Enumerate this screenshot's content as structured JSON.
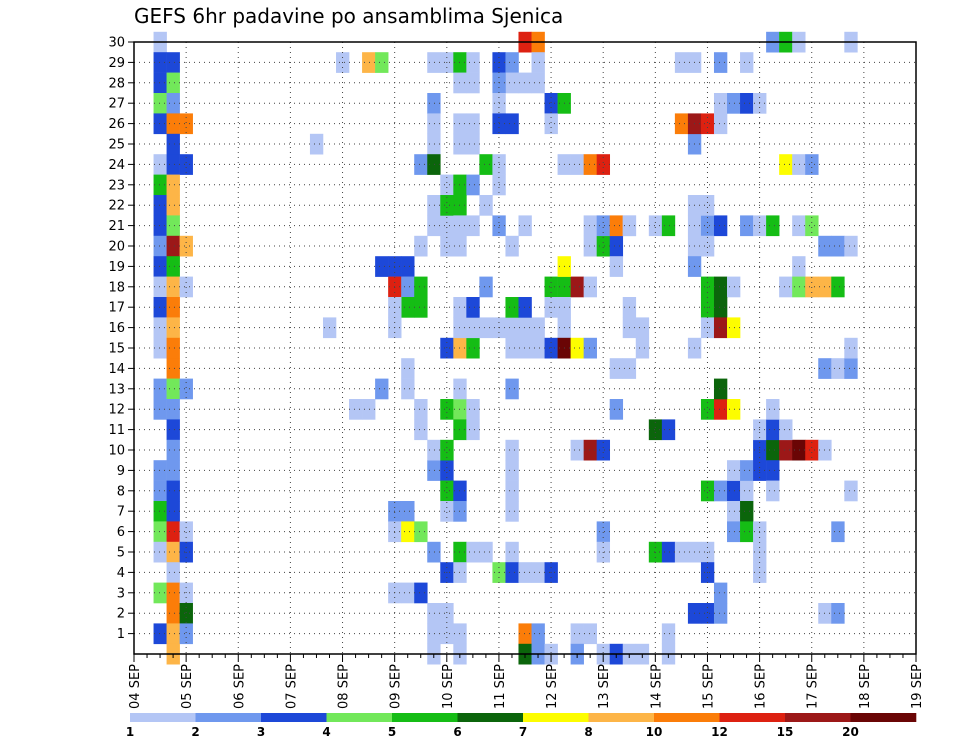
{
  "chart_data": {
    "type": "heatmap",
    "title": "GEFS 6hr padavine po ansamblima Sjenica",
    "xlabel": "",
    "ylabel": "",
    "x_tick_labels": [
      "04 SEP",
      "05 SEP",
      "06 SEP",
      "07 SEP",
      "08 SEP",
      "09 SEP",
      "10 SEP",
      "11 SEP",
      "12 SEP",
      "13 SEP",
      "14 SEP",
      "15 SEP",
      "16 SEP",
      "17 SEP",
      "18 SEP",
      "19 SEP"
    ],
    "y_tick_labels": [
      "1",
      "2",
      "3",
      "4",
      "5",
      "6",
      "7",
      "8",
      "9",
      "10",
      "11",
      "12",
      "13",
      "14",
      "15",
      "16",
      "17",
      "18",
      "19",
      "20",
      "21",
      "22",
      "23",
      "24",
      "25",
      "26",
      "27",
      "28",
      "29",
      "30"
    ],
    "x_unit": "6-hour steps from 04 SEP 00 UTC",
    "x_range_steps": [
      0,
      60
    ],
    "y_range_members": [
      0,
      30
    ],
    "grid": "dotted",
    "color_levels": [
      1,
      2,
      3,
      4,
      5,
      6,
      7,
      8,
      10,
      12,
      15,
      20
    ],
    "level_labels": [
      "1",
      "2",
      "3",
      "4",
      "5",
      "6",
      "7",
      "8",
      "10",
      "12",
      "15",
      "20"
    ],
    "colors": [
      "#b4c6f5",
      "#6f98ee",
      "#1d48d8",
      "#72e85a",
      "#15bd15",
      "#0b650b",
      "#fdfd00",
      "#fdb547",
      "#fb7d09",
      "#dd2111",
      "#9c1818",
      "#6a0505"
    ],
    "cells_format": "[time_step, member, color_class_index(0..11)]",
    "cells": [
      [
        2,
        30,
        0
      ],
      [
        2,
        29,
        2
      ],
      [
        3,
        29,
        2
      ],
      [
        2,
        28,
        2
      ],
      [
        3,
        28,
        3
      ],
      [
        2,
        27,
        3
      ],
      [
        3,
        27,
        1
      ],
      [
        2,
        26,
        2
      ],
      [
        3,
        26,
        8
      ],
      [
        4,
        26,
        8
      ],
      [
        3,
        25,
        2
      ],
      [
        2,
        24,
        0
      ],
      [
        3,
        24,
        2
      ],
      [
        4,
        24,
        2
      ],
      [
        2,
        23,
        4
      ],
      [
        3,
        23,
        7
      ],
      [
        2,
        22,
        2
      ],
      [
        3,
        22,
        7
      ],
      [
        2,
        21,
        2
      ],
      [
        3,
        21,
        3
      ],
      [
        2,
        20,
        1
      ],
      [
        3,
        20,
        10
      ],
      [
        4,
        20,
        7
      ],
      [
        2,
        19,
        2
      ],
      [
        3,
        19,
        4
      ],
      [
        2,
        18,
        0
      ],
      [
        3,
        18,
        7
      ],
      [
        4,
        18,
        0
      ],
      [
        2,
        17,
        2
      ],
      [
        3,
        17,
        8
      ],
      [
        2,
        16,
        0
      ],
      [
        3,
        16,
        7
      ],
      [
        2,
        15,
        0
      ],
      [
        3,
        15,
        8
      ],
      [
        3,
        14,
        8
      ],
      [
        2,
        13,
        1
      ],
      [
        3,
        13,
        3
      ],
      [
        4,
        13,
        1
      ],
      [
        2,
        12,
        1
      ],
      [
        3,
        12,
        1
      ],
      [
        3,
        11,
        2
      ],
      [
        3,
        10,
        1
      ],
      [
        2,
        9,
        1
      ],
      [
        3,
        9,
        1
      ],
      [
        2,
        8,
        1
      ],
      [
        3,
        8,
        2
      ],
      [
        2,
        7,
        4
      ],
      [
        3,
        7,
        2
      ],
      [
        2,
        6,
        3
      ],
      [
        3,
        6,
        9
      ],
      [
        4,
        6,
        0
      ],
      [
        2,
        5,
        0
      ],
      [
        3,
        5,
        7
      ],
      [
        4,
        5,
        2
      ],
      [
        3,
        4,
        0
      ],
      [
        2,
        3,
        3
      ],
      [
        3,
        3,
        8
      ],
      [
        4,
        3,
        0
      ],
      [
        3,
        2,
        8
      ],
      [
        4,
        2,
        5
      ],
      [
        2,
        1,
        2
      ],
      [
        3,
        1,
        7
      ],
      [
        4,
        1,
        1
      ],
      [
        3,
        0,
        7
      ],
      [
        14,
        25,
        0
      ],
      [
        15,
        16,
        0
      ],
      [
        16,
        29,
        0
      ],
      [
        18,
        29,
        7
      ],
      [
        19,
        29,
        3
      ],
      [
        17,
        12,
        0
      ],
      [
        18,
        12,
        0
      ],
      [
        19,
        13,
        1
      ],
      [
        20,
        3,
        0
      ],
      [
        21,
        3,
        0
      ],
      [
        22,
        3,
        2
      ],
      [
        20,
        7,
        1
      ],
      [
        21,
        7,
        1
      ],
      [
        20,
        6,
        0
      ],
      [
        21,
        6,
        6
      ],
      [
        22,
        6,
        3
      ],
      [
        19,
        19,
        2
      ],
      [
        20,
        19,
        2
      ],
      [
        21,
        19,
        2
      ],
      [
        20,
        18,
        9
      ],
      [
        21,
        18,
        1
      ],
      [
        22,
        18,
        4
      ],
      [
        21,
        17,
        4
      ],
      [
        22,
        17,
        4
      ],
      [
        20,
        17,
        0
      ],
      [
        20,
        16,
        0
      ],
      [
        21,
        13,
        0
      ],
      [
        22,
        12,
        0
      ],
      [
        21,
        14,
        0
      ],
      [
        22,
        11,
        0
      ],
      [
        23,
        29,
        0
      ],
      [
        24,
        29,
        0
      ],
      [
        23,
        27,
        1
      ],
      [
        23,
        26,
        0
      ],
      [
        23,
        25,
        0
      ],
      [
        22,
        24,
        1
      ],
      [
        23,
        24,
        5
      ],
      [
        22,
        20,
        0
      ],
      [
        23,
        22,
        0
      ],
      [
        23,
        21,
        0
      ],
      [
        24,
        21,
        0
      ],
      [
        24,
        20,
        0
      ],
      [
        23,
        9,
        1
      ],
      [
        24,
        9,
        2
      ],
      [
        23,
        10,
        0
      ],
      [
        24,
        10,
        4
      ],
      [
        24,
        8,
        4
      ],
      [
        25,
        8,
        2
      ],
      [
        24,
        7,
        0
      ],
      [
        25,
        7,
        1
      ],
      [
        23,
        5,
        1
      ],
      [
        25,
        5,
        4
      ],
      [
        26,
        5,
        0
      ],
      [
        27,
        5,
        0
      ],
      [
        24,
        4,
        2
      ],
      [
        25,
        4,
        0
      ],
      [
        23,
        2,
        0
      ],
      [
        24,
        2,
        0
      ],
      [
        23,
        1,
        0
      ],
      [
        24,
        1,
        0
      ],
      [
        25,
        1,
        0
      ],
      [
        23,
        0,
        0
      ],
      [
        25,
        0,
        0
      ],
      [
        24,
        12,
        4
      ],
      [
        25,
        12,
        3
      ],
      [
        26,
        12,
        0
      ],
      [
        25,
        11,
        4
      ],
      [
        26,
        11,
        0
      ],
      [
        25,
        13,
        0
      ],
      [
        24,
        15,
        2
      ],
      [
        25,
        15,
        7
      ],
      [
        26,
        15,
        4
      ],
      [
        25,
        16,
        0
      ],
      [
        25,
        17,
        0
      ],
      [
        26,
        16,
        0
      ],
      [
        25,
        29,
        4
      ],
      [
        26,
        29,
        0
      ],
      [
        25,
        28,
        0
      ],
      [
        26,
        28,
        0
      ],
      [
        25,
        26,
        0
      ],
      [
        26,
        26,
        0
      ],
      [
        25,
        25,
        0
      ],
      [
        26,
        25,
        0
      ],
      [
        24,
        23,
        0
      ],
      [
        25,
        23,
        4
      ],
      [
        26,
        23,
        1
      ],
      [
        24,
        22,
        4
      ],
      [
        25,
        22,
        4
      ],
      [
        25,
        21,
        0
      ],
      [
        25,
        20,
        0
      ],
      [
        27,
        18,
        1
      ],
      [
        26,
        17,
        2
      ],
      [
        26,
        21,
        0
      ],
      [
        28,
        29,
        2
      ],
      [
        29,
        29,
        1
      ],
      [
        29,
        28,
        0
      ],
      [
        28,
        28,
        1
      ],
      [
        28,
        27,
        0
      ],
      [
        28,
        26,
        2
      ],
      [
        29,
        26,
        2
      ],
      [
        28,
        23,
        0
      ],
      [
        27,
        24,
        4
      ],
      [
        28,
        24,
        0
      ],
      [
        27,
        22,
        0
      ],
      [
        28,
        21,
        1
      ],
      [
        27,
        16,
        0
      ],
      [
        28,
        16,
        0
      ],
      [
        29,
        16,
        0
      ],
      [
        30,
        16,
        0
      ],
      [
        31,
        16,
        0
      ],
      [
        29,
        17,
        4
      ],
      [
        30,
        17,
        2
      ],
      [
        30,
        21,
        0
      ],
      [
        29,
        20,
        0
      ],
      [
        29,
        15,
        0
      ],
      [
        30,
        15,
        0
      ],
      [
        31,
        15,
        0
      ],
      [
        29,
        13,
        1
      ],
      [
        29,
        10,
        0
      ],
      [
        29,
        9,
        0
      ],
      [
        29,
        8,
        0
      ],
      [
        29,
        7,
        0
      ],
      [
        29,
        5,
        0
      ],
      [
        28,
        4,
        3
      ],
      [
        29,
        4,
        2
      ],
      [
        30,
        4,
        0
      ],
      [
        31,
        4,
        0
      ],
      [
        32,
        4,
        2
      ],
      [
        30,
        1,
        8
      ],
      [
        31,
        1,
        1
      ],
      [
        30,
        0,
        5
      ],
      [
        31,
        0,
        1
      ],
      [
        32,
        0,
        0
      ],
      [
        30,
        30,
        9
      ],
      [
        31,
        30,
        8
      ],
      [
        31,
        29,
        0
      ],
      [
        30,
        28,
        0
      ],
      [
        31,
        28,
        0
      ],
      [
        32,
        27,
        2
      ],
      [
        33,
        27,
        4
      ],
      [
        32,
        26,
        0
      ],
      [
        33,
        24,
        0
      ],
      [
        34,
        24,
        0
      ],
      [
        35,
        24,
        8
      ],
      [
        36,
        24,
        9
      ],
      [
        32,
        18,
        4
      ],
      [
        33,
        18,
        4
      ],
      [
        34,
        18,
        10
      ],
      [
        35,
        18,
        0
      ],
      [
        33,
        19,
        6
      ],
      [
        33,
        17,
        0
      ],
      [
        32,
        17,
        0
      ],
      [
        33,
        16,
        0
      ],
      [
        32,
        15,
        2
      ],
      [
        33,
        15,
        11
      ],
      [
        34,
        15,
        6
      ],
      [
        35,
        15,
        1
      ],
      [
        35,
        20,
        0
      ],
      [
        36,
        20,
        4
      ],
      [
        37,
        20,
        2
      ],
      [
        35,
        21,
        0
      ],
      [
        36,
        21,
        1
      ],
      [
        37,
        21,
        8
      ],
      [
        38,
        21,
        0
      ],
      [
        34,
        10,
        0
      ],
      [
        35,
        10,
        10
      ],
      [
        36,
        10,
        2
      ],
      [
        34,
        1,
        0
      ],
      [
        35,
        1,
        0
      ],
      [
        34,
        0,
        1
      ],
      [
        36,
        0,
        0
      ],
      [
        37,
        0,
        2
      ],
      [
        38,
        0,
        0
      ],
      [
        39,
        0,
        0
      ],
      [
        36,
        6,
        1
      ],
      [
        36,
        5,
        0
      ],
      [
        37,
        14,
        0
      ],
      [
        38,
        14,
        0
      ],
      [
        37,
        12,
        1
      ],
      [
        38,
        17,
        0
      ],
      [
        37,
        19,
        0
      ],
      [
        38,
        21,
        0
      ],
      [
        38,
        16,
        0
      ],
      [
        39,
        16,
        0
      ],
      [
        39,
        15,
        0
      ],
      [
        40,
        11,
        5
      ],
      [
        41,
        11,
        2
      ],
      [
        40,
        21,
        0
      ],
      [
        41,
        21,
        4
      ],
      [
        40,
        5,
        4
      ],
      [
        41,
        5,
        2
      ],
      [
        41,
        1,
        0
      ],
      [
        41,
        0,
        0
      ],
      [
        43,
        25,
        1
      ],
      [
        43,
        21,
        0
      ],
      [
        44,
        21,
        1
      ],
      [
        45,
        21,
        2
      ],
      [
        47,
        21,
        1
      ],
      [
        48,
        21,
        0
      ],
      [
        49,
        21,
        4
      ],
      [
        51,
        21,
        0
      ],
      [
        52,
        21,
        3
      ],
      [
        43,
        22,
        0
      ],
      [
        44,
        22,
        0
      ],
      [
        43,
        20,
        0
      ],
      [
        44,
        20,
        0
      ],
      [
        43,
        19,
        1
      ],
      [
        43,
        15,
        0
      ],
      [
        43,
        2,
        2
      ],
      [
        44,
        2,
        2
      ],
      [
        45,
        2,
        1
      ],
      [
        42,
        5,
        0
      ],
      [
        43,
        5,
        0
      ],
      [
        44,
        5,
        0
      ],
      [
        44,
        4,
        2
      ],
      [
        45,
        3,
        1
      ],
      [
        42,
        26,
        8
      ],
      [
        43,
        26,
        10
      ],
      [
        44,
        26,
        9
      ],
      [
        45,
        26,
        0
      ],
      [
        42,
        29,
        0
      ],
      [
        43,
        29,
        0
      ],
      [
        45,
        29,
        1
      ],
      [
        47,
        29,
        0
      ],
      [
        45,
        27,
        0
      ],
      [
        46,
        27,
        1
      ],
      [
        47,
        27,
        2
      ],
      [
        48,
        27,
        0
      ],
      [
        49,
        30,
        1
      ],
      [
        50,
        30,
        4
      ],
      [
        51,
        30,
        0
      ],
      [
        44,
        18,
        4
      ],
      [
        45,
        18,
        5
      ],
      [
        46,
        18,
        0
      ],
      [
        44,
        17,
        4
      ],
      [
        45,
        17,
        5
      ],
      [
        44,
        16,
        0
      ],
      [
        45,
        16,
        10
      ],
      [
        46,
        16,
        6
      ],
      [
        44,
        12,
        4
      ],
      [
        45,
        12,
        9
      ],
      [
        46,
        12,
        6
      ],
      [
        45,
        13,
        5
      ],
      [
        44,
        8,
        4
      ],
      [
        45,
        8,
        1
      ],
      [
        46,
        8,
        2
      ],
      [
        47,
        8,
        0
      ],
      [
        46,
        7,
        0
      ],
      [
        47,
        7,
        5
      ],
      [
        46,
        6,
        1
      ],
      [
        47,
        6,
        4
      ],
      [
        48,
        6,
        0
      ],
      [
        46,
        9,
        0
      ],
      [
        47,
        9,
        1
      ],
      [
        48,
        9,
        2
      ],
      [
        48,
        10,
        2
      ],
      [
        49,
        10,
        5
      ],
      [
        50,
        10,
        10
      ],
      [
        51,
        10,
        11
      ],
      [
        52,
        10,
        9
      ],
      [
        53,
        10,
        0
      ],
      [
        48,
        11,
        0
      ],
      [
        49,
        11,
        2
      ],
      [
        50,
        11,
        0
      ],
      [
        49,
        12,
        0
      ],
      [
        48,
        5,
        0
      ],
      [
        48,
        4,
        0
      ],
      [
        50,
        24,
        6
      ],
      [
        51,
        24,
        0
      ],
      [
        52,
        24,
        1
      ],
      [
        51,
        19,
        0
      ],
      [
        50,
        18,
        0
      ],
      [
        51,
        18,
        3
      ],
      [
        52,
        18,
        7
      ],
      [
        53,
        18,
        7
      ],
      [
        54,
        18,
        4
      ],
      [
        53,
        20,
        1
      ],
      [
        54,
        20,
        1
      ],
      [
        55,
        20,
        0
      ],
      [
        53,
        14,
        1
      ],
      [
        54,
        14,
        0
      ],
      [
        55,
        14,
        1
      ],
      [
        55,
        15,
        0
      ],
      [
        53,
        2,
        0
      ],
      [
        54,
        2,
        1
      ],
      [
        54,
        6,
        1
      ],
      [
        55,
        8,
        0
      ],
      [
        55,
        30,
        0
      ],
      [
        49,
        9,
        2
      ],
      [
        49,
        8,
        0
      ]
    ]
  }
}
